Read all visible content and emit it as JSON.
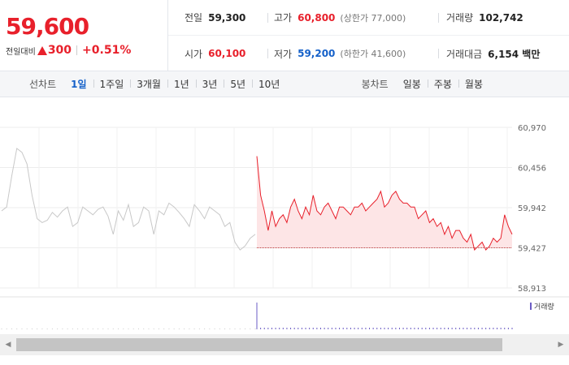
{
  "quote": {
    "price": "59,600",
    "change_label": "전일대비",
    "change_value": "300",
    "change_pct": "+0.51%",
    "prev_close_label": "전일",
    "prev_close": "59,300",
    "high_label": "고가",
    "high": "60,800",
    "upper_limit": "(상한가 77,000)",
    "volume_label": "거래량",
    "volume": "102,742",
    "open_label": "시가",
    "open": "60,100",
    "low_label": "저가",
    "low": "59,200",
    "lower_limit": "(하한가 41,600)",
    "amount_label": "거래대금",
    "amount": "6,154 백만"
  },
  "toolbar": {
    "line_label": "선차트",
    "periods": [
      "1일",
      "1주일",
      "3개월",
      "1년",
      "3년",
      "5년",
      "10년"
    ],
    "active_period": 0,
    "candle_label": "봉차트",
    "candles": [
      "일봉",
      "주봉",
      "월봉"
    ]
  },
  "colors": {
    "up": "#e8202b",
    "down": "#1561c9",
    "prev_day_line": "#c8c8c8",
    "area_fill": "#fde5e6",
    "volume_bar": "#6b5cc4"
  },
  "chart_data": {
    "type": "line",
    "yticks": [
      "60,970",
      "60,456",
      "59,942",
      "59,427",
      "58,913"
    ],
    "ylim": [
      58913,
      60970
    ],
    "baseline": 59427,
    "volume_legend": "거래량",
    "grid": true,
    "series": [
      {
        "values": [
          59900,
          59950,
          60350,
          60700,
          60650,
          60500,
          60100,
          59800,
          59750,
          59780,
          59880,
          59820,
          59900,
          59950,
          59700,
          59750,
          59950,
          59900,
          59850,
          59920,
          59950,
          59830,
          59600,
          59900,
          59780,
          59980,
          59700,
          59750,
          59950,
          59900,
          59600,
          59900,
          59850,
          60000,
          59950,
          59880,
          59800,
          59700,
          59980,
          59900,
          59800,
          59950,
          59900,
          59850,
          59700,
          59750,
          59500,
          59400,
          59450,
          59550,
          59600
        ]
      },
      {
        "values": [
          60600,
          60100,
          59900,
          59650,
          59900,
          59700,
          59800,
          59850,
          59750,
          59950,
          60050,
          59900,
          59800,
          59950,
          59850,
          60100,
          59900,
          59850,
          59950,
          60000,
          59900,
          59800,
          59950,
          59950,
          59900,
          59850,
          59950,
          59950,
          60000,
          59900,
          59950,
          60000,
          60050,
          60150,
          59950,
          60000,
          60100,
          60150,
          60050,
          60000,
          60000,
          59950,
          59950,
          59800,
          59850,
          59900,
          59750,
          59800,
          59700,
          59750,
          59600,
          59700,
          59550,
          59650,
          59650,
          59550,
          59500,
          59600,
          59400,
          59450,
          59500,
          59400,
          59450,
          59550,
          59500,
          59550,
          59850,
          59700,
          59600
        ]
      }
    ]
  }
}
